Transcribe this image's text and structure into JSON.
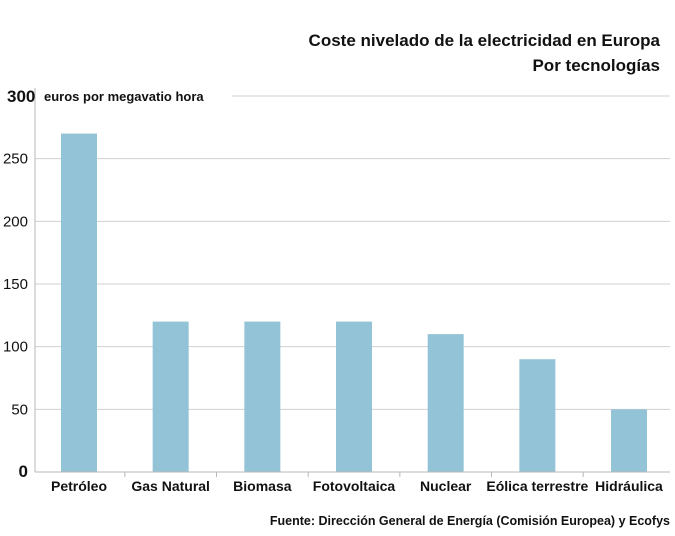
{
  "chart_data": {
    "type": "bar",
    "title": "Coste nivelado de la electricidad en Europa",
    "subtitle": "Por tecnologías",
    "ylabel": "euros por megavatio hora",
    "xlabel": "",
    "categories": [
      "Petróleo",
      "Gas Natural",
      "Biomasa",
      "Fotovoltaica",
      "Nuclear",
      "Eólica terrestre",
      "Hidráulica"
    ],
    "values": [
      270,
      120,
      120,
      120,
      110,
      90,
      50
    ],
    "ylim": [
      0,
      300
    ],
    "yticks": [
      "0",
      "50",
      "100",
      "150",
      "200",
      "250",
      "300"
    ],
    "grid": true,
    "legend": "none",
    "source": "Fuente: Dirección General de Energía (Comisión Europea) y Ecofys"
  },
  "colors": {
    "bar": "#92c3d6",
    "grid": "#d0d0d0",
    "axis": "#b8b8b8",
    "text": "#111111"
  }
}
